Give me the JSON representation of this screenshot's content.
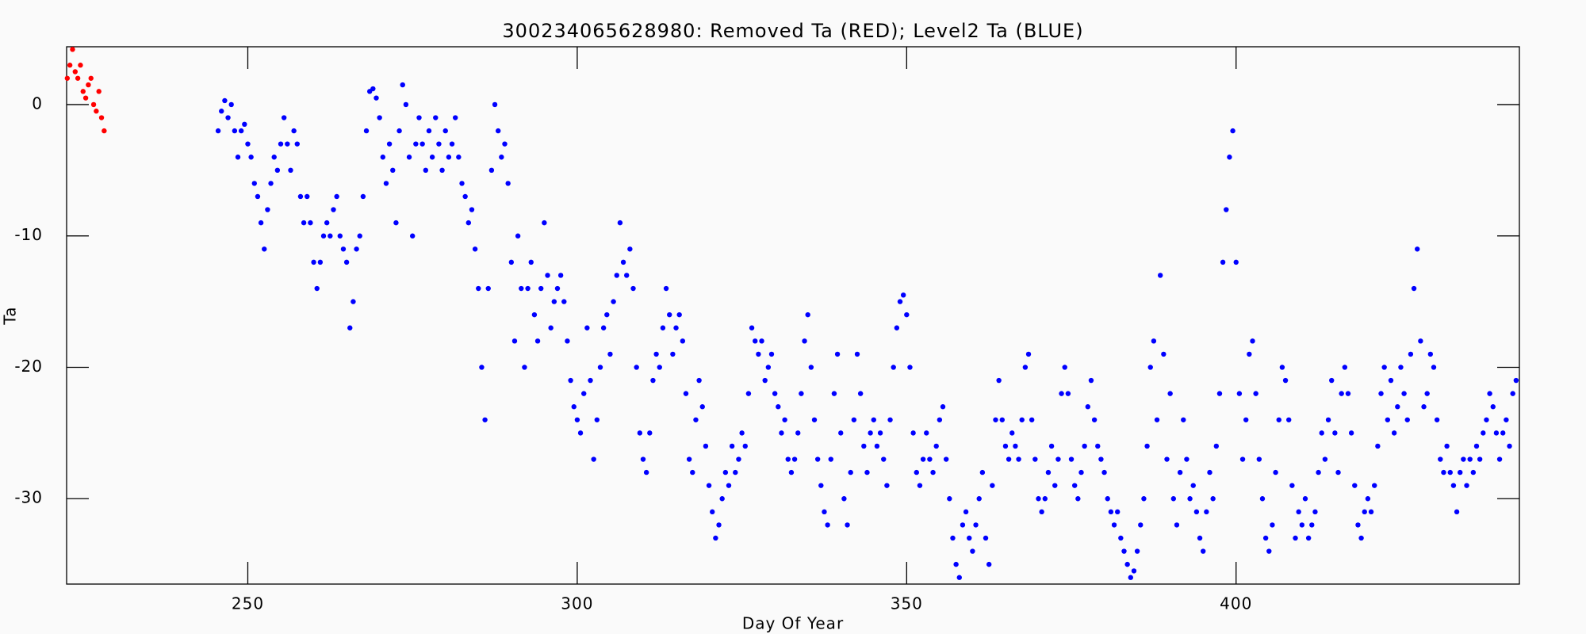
{
  "chart_data": {
    "type": "scatter",
    "title": "300234065628980: Removed Ta (RED); Level2 Ta (BLUE)",
    "xlabel": "Day Of Year",
    "ylabel": "Ta",
    "xlim": [
      222.5,
      443
    ],
    "ylim": [
      -36.5,
      4.4
    ],
    "xticks": [
      250,
      300,
      350,
      400
    ],
    "yticks": [
      -30,
      -20,
      -10,
      0
    ],
    "series": [
      {
        "color": "#ff0000",
        "x": [
          222.6,
          223.0,
          223.4,
          223.8,
          224.2,
          224.6,
          225.0,
          225.4,
          225.8,
          226.2,
          226.6,
          227.0,
          227.4,
          227.8,
          228.2
        ],
        "values": [
          2.0,
          3.0,
          4.2,
          2.5,
          2.0,
          3.0,
          1.0,
          0.5,
          1.5,
          2.0,
          0,
          -0.5,
          1.0,
          -1.0,
          -2.0
        ]
      },
      {
        "color": "#0000ff",
        "x": [
          245.5,
          246,
          246.5,
          247,
          247.5,
          248,
          248.5,
          249,
          249.5,
          250,
          250.5,
          251,
          251.5,
          252,
          252.5,
          253,
          253.5,
          254,
          254.5,
          255,
          255.5,
          256,
          256.5,
          257,
          257.5,
          258,
          258.5,
          259,
          259.5,
          260,
          260.5,
          261,
          261.5,
          262,
          262.5,
          263,
          263.5,
          264,
          264.5,
          265,
          265.5,
          266,
          266.5,
          267,
          267.5,
          268,
          268.5,
          269,
          269.5,
          270,
          270.5,
          271,
          271.5,
          272,
          272.5,
          273,
          273.5,
          274,
          274.5,
          275,
          275.5,
          276,
          276.5,
          277,
          277.5,
          278,
          278.5,
          279,
          279.5,
          280,
          280.5,
          281,
          281.5,
          282,
          282.5,
          283,
          283.5,
          284,
          284.5,
          285,
          285.5,
          286,
          286.5,
          287,
          287.5,
          288,
          288.5,
          289,
          289.5,
          290,
          290.5,
          291,
          291.5,
          292,
          292.5,
          293,
          293.5,
          294,
          294.5,
          295,
          295.5,
          296,
          296.5,
          297,
          297.5,
          298,
          298.5,
          299,
          299.5,
          300,
          300.5,
          301,
          301.5,
          302,
          302.5,
          303,
          303.5,
          304,
          304.5,
          305,
          305.5,
          306,
          306.5,
          307,
          307.5,
          308,
          308.5,
          309,
          309.5,
          310,
          310.5,
          311,
          311.5,
          312,
          312.5,
          313,
          313.5,
          314,
          314.5,
          315,
          315.5,
          316,
          316.5,
          317,
          317.5,
          318,
          318.5,
          319,
          319.5,
          320,
          320.5,
          321,
          321.5,
          322,
          322.5,
          323,
          323.5,
          324,
          324.5,
          325,
          325.5,
          326,
          326.5,
          327,
          327.5,
          328,
          328.5,
          329,
          329.5,
          330,
          330.5,
          331,
          331.5,
          332,
          332.5,
          333,
          333.5,
          334,
          334.5,
          335,
          335.5,
          336,
          336.5,
          337,
          337.5,
          338,
          338.5,
          339,
          339.5,
          340,
          340.5,
          341,
          341.5,
          342,
          342.5,
          343,
          343.5,
          344,
          344.5,
          345,
          345.5,
          346,
          346.5,
          347,
          347.5,
          348,
          348.5,
          349,
          349.5,
          350,
          350.5,
          351,
          351.5,
          352,
          352.5,
          353,
          353.5,
          354,
          354.5,
          355,
          355.5,
          356,
          356.5,
          357,
          357.5,
          358,
          358.5,
          359,
          359.5,
          360,
          360.5,
          361,
          361.5,
          362,
          362.5,
          363,
          363.5,
          364,
          364.5,
          365,
          365.5,
          366,
          366.5,
          367,
          367.5,
          368,
          368.5,
          369,
          369.5,
          370,
          370.5,
          371,
          371.5,
          372,
          372.5,
          373,
          373.5,
          374,
          374.5,
          375,
          375.5,
          376,
          376.5,
          377,
          377.5,
          378,
          378.5,
          379,
          379.5,
          380,
          380.5,
          381,
          381.5,
          382,
          382.5,
          383,
          383.5,
          384,
          384.5,
          385,
          385.5,
          386,
          386.5,
          387,
          387.5,
          388,
          388.5,
          389,
          389.5,
          390,
          390.5,
          391,
          391.5,
          392,
          392.5,
          393,
          393.5,
          394,
          394.5,
          395,
          395.5,
          396,
          396.5,
          397,
          397.5,
          398,
          398.5,
          399,
          399.5,
          400,
          400.5,
          401,
          401.5,
          402,
          402.5,
          403,
          403.5,
          404,
          404.5,
          405,
          405.5,
          406,
          406.5,
          407,
          407.5,
          408,
          408.5,
          409,
          409.5,
          410,
          410.5,
          411,
          411.5,
          412,
          412.5,
          413,
          413.5,
          414,
          414.5,
          415,
          415.5,
          416,
          416.5,
          417,
          417.5,
          418,
          418.5,
          419,
          419.5,
          420,
          420.5,
          421,
          421.5,
          422,
          422.5,
          423,
          423.5,
          424,
          424.5,
          425,
          425.5,
          426,
          426.5,
          427,
          427.5,
          428,
          428.5,
          429,
          429.5,
          430,
          430.5,
          431,
          431.5,
          432,
          432.5,
          433,
          433.5,
          434,
          434.5,
          435,
          435.5,
          436,
          436.5,
          437,
          437.5,
          438,
          438.5,
          439,
          439.5,
          440,
          440.5,
          441,
          441.5,
          442,
          442.5
        ],
        "values": [
          -2,
          -0.5,
          0.3,
          -1,
          0,
          -2,
          -4,
          -2,
          -1.5,
          -3,
          -4,
          -6,
          -7,
          -9,
          -11,
          -8,
          -6,
          -4,
          -5,
          -3,
          -1,
          -3,
          -5,
          -2,
          -3,
          -7,
          -9,
          -7,
          -9,
          -12,
          -14,
          -12,
          -10,
          -9,
          -10,
          -8,
          -7,
          -10,
          -11,
          -12,
          -17,
          -15,
          -11,
          -10,
          -7,
          -2,
          1,
          1.2,
          0.5,
          -1,
          -4,
          -6,
          -3,
          -5,
          -9,
          -2,
          1.5,
          0,
          -4,
          -10,
          -3,
          -1,
          -3,
          -5,
          -2,
          -4,
          -1,
          -3,
          -5,
          -2,
          -4,
          -3,
          -1,
          -4,
          -6,
          -7,
          -9,
          -8,
          -11,
          -14,
          -20,
          -24,
          -14,
          -5,
          0,
          -2,
          -4,
          -3,
          -6,
          -12,
          -18,
          -10,
          -14,
          -20,
          -14,
          -12,
          -16,
          -18,
          -14,
          -9,
          -13,
          -17,
          -15,
          -14,
          -13,
          -15,
          -18,
          -21,
          -23,
          -24,
          -25,
          -22,
          -17,
          -21,
          -27,
          -24,
          -20,
          -17,
          -16,
          -19,
          -15,
          -13,
          -9,
          -12,
          -13,
          -11,
          -14,
          -20,
          -25,
          -27,
          -28,
          -25,
          -21,
          -19,
          -20,
          -17,
          -14,
          -16,
          -19,
          -17,
          -16,
          -18,
          -22,
          -27,
          -28,
          -24,
          -21,
          -23,
          -26,
          -29,
          -31,
          -33,
          -32,
          -30,
          -28,
          -29,
          -26,
          -28,
          -27,
          -25,
          -26,
          -22,
          -17,
          -18,
          -19,
          -18,
          -21,
          -20,
          -19,
          -22,
          -23,
          -25,
          -24,
          -27,
          -28,
          -27,
          -25,
          -22,
          -18,
          -16,
          -20,
          -24,
          -27,
          -29,
          -31,
          -32,
          -27,
          -22,
          -19,
          -25,
          -30,
          -32,
          -28,
          -24,
          -19,
          -22,
          -26,
          -28,
          -25,
          -24,
          -26,
          -25,
          -27,
          -29,
          -24,
          -20,
          -17,
          -15,
          -14.5,
          -16,
          -20,
          -25,
          -28,
          -29,
          -27,
          -25,
          -27,
          -28,
          -26,
          -24,
          -23,
          -27,
          -30,
          -33,
          -35,
          -36,
          -32,
          -31,
          -33,
          -34,
          -32,
          -30,
          -28,
          -33,
          -35,
          -29,
          -24,
          -21,
          -24,
          -26,
          -27,
          -25,
          -26,
          -27,
          -24,
          -20,
          -19,
          -24,
          -27,
          -30,
          -31,
          -30,
          -28,
          -26,
          -29,
          -27,
          -22,
          -20,
          -22,
          -27,
          -29,
          -30,
          -28,
          -26,
          -23,
          -21,
          -24,
          -26,
          -27,
          -28,
          -30,
          -31,
          -32,
          -31,
          -33,
          -34,
          -35,
          -36,
          -35.5,
          -34,
          -32,
          -30,
          -26,
          -20,
          -18,
          -24,
          -13,
          -19,
          -27,
          -22,
          -30,
          -32,
          -28,
          -24,
          -27,
          -30,
          -29,
          -31,
          -33,
          -34,
          -31,
          -28,
          -30,
          -26,
          -22,
          -12,
          -8,
          -4,
          -2,
          -12,
          -22,
          -27,
          -24,
          -19,
          -18,
          -22,
          -27,
          -30,
          -33,
          -34,
          -32,
          -28,
          -24,
          -20,
          -21,
          -24,
          -29,
          -33,
          -31,
          -32,
          -30,
          -33,
          -32,
          -31,
          -28,
          -25,
          -27,
          -24,
          -21,
          -25,
          -28,
          -22,
          -20,
          -22,
          -25,
          -29,
          -32,
          -33,
          -31,
          -30,
          -31,
          -29,
          -26,
          -22,
          -20,
          -24,
          -21,
          -25,
          -23,
          -20,
          -22,
          -24,
          -19,
          -14,
          -11,
          -18,
          -23,
          -22,
          -19,
          -20,
          -24,
          -27,
          -28,
          -26,
          -28,
          -29,
          -31,
          -28,
          -27,
          -29,
          -27,
          -28,
          -26,
          -27,
          -25,
          -24,
          -22,
          -23,
          -25,
          -27,
          -25,
          -24,
          -26,
          -22,
          -21
        ]
      }
    ]
  }
}
